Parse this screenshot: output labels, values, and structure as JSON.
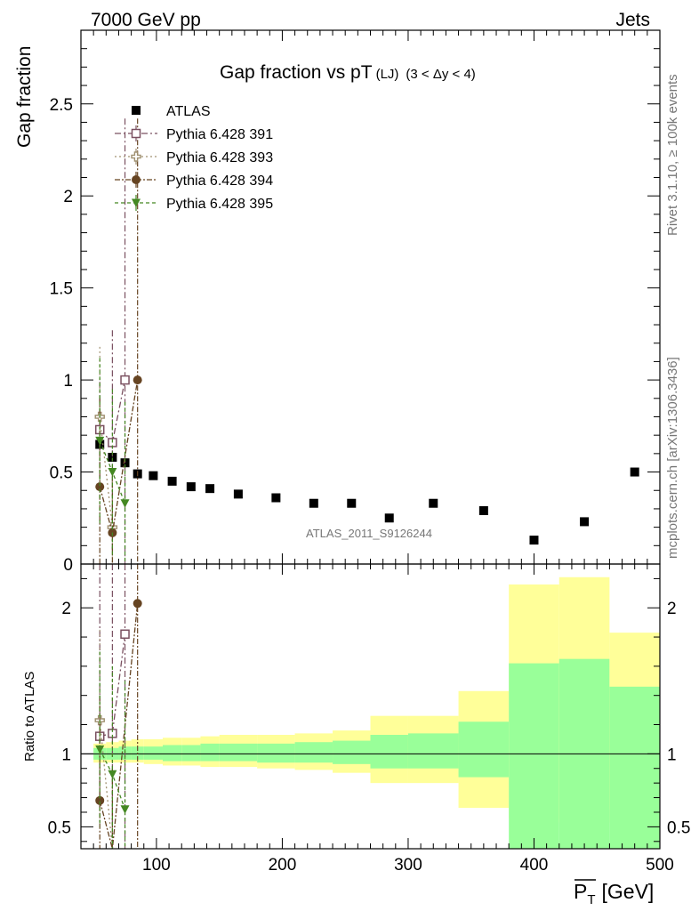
{
  "header": {
    "left": "7000 GeV pp",
    "right": "Jets"
  },
  "side_labels": {
    "rivet": "Rivet 3.1.10, ≥ 100k events",
    "mcplots": "mcplots.cern.ch [arXiv:1306.3436]"
  },
  "chart_data": {
    "type": "scatter",
    "title": "Gap fraction vs pT",
    "title_sub": "(LJ)",
    "title_range": "(3 < Δy < 4)",
    "watermark": "ATLAS_2011_S9126244",
    "xlabel_main": "P",
    "xlabel_sub": "T",
    "xlabel_unit": "[GeV]",
    "ylabel_top": "Gap fraction",
    "ylabel_bottom": "Ratio to ATLAS",
    "xlim": [
      40,
      500
    ],
    "ylim_top": [
      0,
      2.9
    ],
    "ylim_bottom": [
      0.35,
      2.3
    ],
    "xticks": [
      100,
      200,
      300,
      400,
      500
    ],
    "yticks_top": [
      "0",
      "0.5",
      "1",
      "1.5",
      "2",
      "2.5"
    ],
    "yticks_bottom": [
      "0.5",
      "1",
      "2"
    ],
    "legend_position": "top-left",
    "colors": {
      "atlas": "#000000",
      "p391": "#7a5060",
      "p393": "#a09070",
      "p394": "#664422",
      "p395": "#448822",
      "band_inner": "#99ff99",
      "band_outer": "#ffff99"
    },
    "atlas": {
      "name": "ATLAS",
      "x": [
        55,
        65,
        75,
        85,
        97.5,
        112.5,
        127.5,
        142.5,
        165,
        195,
        225,
        255,
        285,
        320,
        360,
        400,
        440,
        480
      ],
      "y": [
        0.65,
        0.58,
        0.55,
        0.49,
        0.48,
        0.45,
        0.42,
        0.41,
        0.38,
        0.36,
        0.33,
        0.33,
        0.25,
        0.33,
        0.29,
        0.13,
        0.23,
        0.5
      ],
      "bins": [
        [
          50,
          60
        ],
        [
          60,
          70
        ],
        [
          70,
          80
        ],
        [
          80,
          90
        ],
        [
          90,
          105
        ],
        [
          105,
          120
        ],
        [
          120,
          135
        ],
        [
          135,
          150
        ],
        [
          150,
          180
        ],
        [
          180,
          210
        ],
        [
          210,
          240
        ],
        [
          240,
          270
        ],
        [
          270,
          300
        ],
        [
          300,
          340
        ],
        [
          340,
          380
        ],
        [
          380,
          420
        ],
        [
          420,
          460
        ],
        [
          460,
          500
        ]
      ],
      "band_inner": [
        [
          0.96,
          1.04
        ],
        [
          0.96,
          1.04
        ],
        [
          0.96,
          1.05
        ],
        [
          0.96,
          1.05
        ],
        [
          0.96,
          1.05
        ],
        [
          0.95,
          1.06
        ],
        [
          0.95,
          1.06
        ],
        [
          0.95,
          1.07
        ],
        [
          0.95,
          1.07
        ],
        [
          0.94,
          1.07
        ],
        [
          0.94,
          1.08
        ],
        [
          0.93,
          1.09
        ],
        [
          0.9,
          1.13
        ],
        [
          0.9,
          1.14
        ],
        [
          0.84,
          1.22
        ],
        [
          0.3,
          1.62
        ],
        [
          0.3,
          1.65
        ],
        [
          0.3,
          1.46
        ]
      ],
      "band_outer": [
        [
          0.94,
          1.07
        ],
        [
          0.94,
          1.08
        ],
        [
          0.94,
          1.09
        ],
        [
          0.94,
          1.1
        ],
        [
          0.93,
          1.1
        ],
        [
          0.92,
          1.11
        ],
        [
          0.92,
          1.11
        ],
        [
          0.91,
          1.12
        ],
        [
          0.91,
          1.13
        ],
        [
          0.9,
          1.13
        ],
        [
          0.89,
          1.14
        ],
        [
          0.87,
          1.16
        ],
        [
          0.8,
          1.26
        ],
        [
          0.8,
          1.26
        ],
        [
          0.63,
          1.43
        ],
        [
          0.56,
          2.16
        ],
        [
          0.53,
          2.21
        ],
        [
          0.62,
          1.83
        ]
      ]
    },
    "series": [
      {
        "name": "Pythia 6.428 391",
        "key": "p391",
        "marker": "open-square",
        "dash": "7,3,2,3",
        "x": [
          55,
          65,
          75
        ],
        "y": [
          0.73,
          0.66,
          1.0
        ],
        "err": [
          [
            0.47,
            0.99
          ],
          [
            0.06,
            1.27
          ],
          [
            0.0,
            2.42
          ]
        ],
        "ratio": [
          1.12,
          1.14,
          1.82
        ],
        "ratio_err": [
          [
            0.6,
            2.4
          ],
          [
            0.3,
            2.5
          ],
          [
            0.3,
            2.5
          ]
        ]
      },
      {
        "name": "Pythia 6.428 393",
        "key": "p393",
        "marker": "open-plus",
        "dash": "2,3",
        "x": [
          55,
          65
        ],
        "y": [
          0.8,
          0.2
        ],
        "err": [
          [
            0.42,
            1.18
          ],
          [
            0.0,
            0.5
          ]
        ],
        "ratio": [
          1.23,
          0.3
        ],
        "ratio_err": [
          [
            0.6,
            1.85
          ],
          [
            0.0,
            0.8
          ]
        ]
      },
      {
        "name": "Pythia 6.428 394",
        "key": "p394",
        "marker": "filled-circle",
        "dash": "6,2,2,2",
        "x": [
          55,
          65,
          85
        ],
        "y": [
          0.42,
          0.17,
          1.0
        ],
        "err": [
          [
            0.0,
            0.9
          ],
          [
            0.0,
            0.5
          ],
          [
            0.0,
            2.42
          ]
        ],
        "ratio": [
          0.68,
          0.29,
          2.03
        ],
        "ratio_err": [
          [
            0.2,
            1.4
          ],
          [
            0.0,
            0.9
          ],
          [
            0.2,
            2.3
          ]
        ]
      },
      {
        "name": "Pythia 6.428 395",
        "key": "p395",
        "marker": "filled-triangle-down",
        "dash": "4,3",
        "x": [
          55,
          65,
          75
        ],
        "y": [
          0.67,
          0.5,
          0.33
        ],
        "err": [
          [
            0.22,
            1.12
          ],
          [
            0.05,
            0.95
          ],
          [
            0.0,
            0.88
          ]
        ],
        "ratio": [
          1.03,
          0.86,
          0.62
        ],
        "ratio_err": [
          [
            0.5,
            1.7
          ],
          [
            0.2,
            1.6
          ],
          [
            0.0,
            1.5
          ]
        ]
      }
    ]
  }
}
